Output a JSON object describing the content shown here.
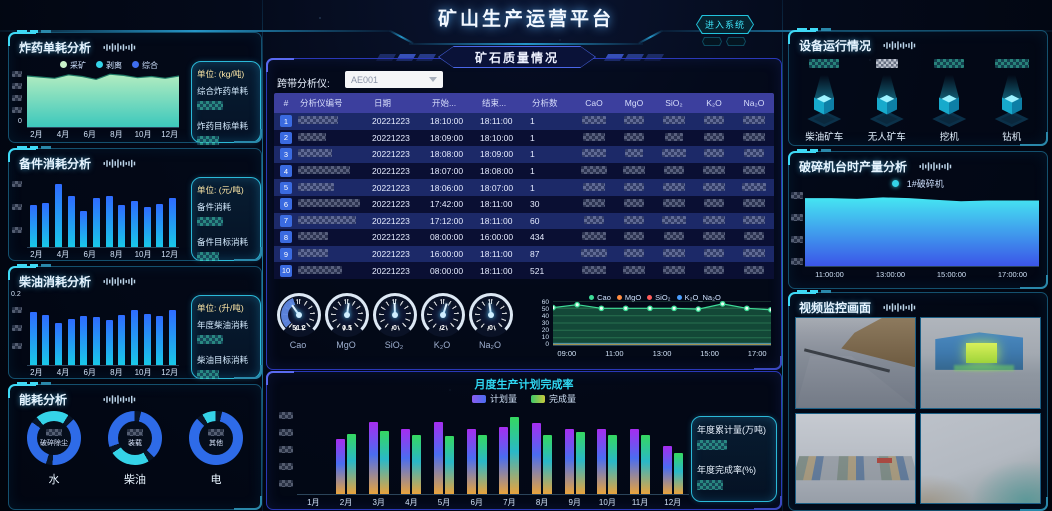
{
  "app": {
    "title": "矿山生产运营平台",
    "enter_button": "进入系统"
  },
  "panels": {
    "explosive": {
      "title": "炸药单耗分析",
      "legend": [
        {
          "label": "采矿",
          "color": "#c8f0c8"
        },
        {
          "label": "剥离",
          "color": "#35d3e8"
        },
        {
          "label": "综合",
          "color": "#3f6ef0"
        }
      ],
      "info": {
        "unit": "单位: (kg/吨)",
        "metric1": "综合炸药单耗",
        "metric2": "炸药目标单耗"
      }
    },
    "spare": {
      "title": "备件消耗分析",
      "info": {
        "unit": "单位: (元/吨)",
        "metric1": "备件消耗",
        "metric2": "备件目标消耗"
      }
    },
    "diesel": {
      "title": "柴油消耗分析",
      "info": {
        "unit": "单位: (升/吨)",
        "metric1": "年度柴油消耗",
        "metric2": "柴油目标消耗"
      }
    },
    "energy": {
      "title": "能耗分析"
    },
    "quality": {
      "section_title": "矿石质量情况",
      "analyzer_label": "跨带分析仪:",
      "analyzer_value": "AE001"
    },
    "monthly": {
      "box_line1": "年度累计量(万吨)",
      "box_line2": "年度完成率(%)"
    },
    "equipment": {
      "title": "设备运行情况",
      "items": [
        "柴油矿车",
        "无人矿车",
        "挖机",
        "钻机"
      ]
    },
    "crusher": {
      "title": "破碎机台时产量分析",
      "legend": "1#破碎机"
    },
    "video": {
      "title": "视频监控画面"
    }
  },
  "table": {
    "headers": [
      "#",
      "分析仪编号",
      "日期",
      "开始...",
      "结束...",
      "分析数",
      "CaO",
      "MgO",
      "SiO₂",
      "K₂O",
      "Na₂O"
    ],
    "rows": [
      {
        "i": "1",
        "date": "20221223",
        "start": "18:10:00",
        "end": "18:11:00",
        "n": "1"
      },
      {
        "i": "2",
        "date": "20221223",
        "start": "18:09:00",
        "end": "18:10:00",
        "n": "1"
      },
      {
        "i": "3",
        "date": "20221223",
        "start": "18:08:00",
        "end": "18:09:00",
        "n": "1"
      },
      {
        "i": "4",
        "date": "20221223",
        "start": "18:07:00",
        "end": "18:08:00",
        "n": "1"
      },
      {
        "i": "5",
        "date": "20221223",
        "start": "18:06:00",
        "end": "18:07:00",
        "n": "1"
      },
      {
        "i": "6",
        "date": "20221223",
        "start": "17:42:00",
        "end": "18:11:00",
        "n": "30"
      },
      {
        "i": "7",
        "date": "20221223",
        "start": "17:12:00",
        "end": "18:11:00",
        "n": "60"
      },
      {
        "i": "8",
        "date": "20221223",
        "start": "08:00:00",
        "end": "16:00:00",
        "n": "434"
      },
      {
        "i": "9",
        "date": "20221223",
        "start": "16:00:00",
        "end": "18:11:00",
        "n": "87"
      },
      {
        "i": "10",
        "date": "20221223",
        "start": "08:00:00",
        "end": "18:11:00",
        "n": "521"
      }
    ]
  },
  "gauges": [
    {
      "label": "Cao",
      "value": "51.2"
    },
    {
      "label": "MgO",
      "value": "0.5"
    },
    {
      "label": "SiO₂",
      "value": "0"
    },
    {
      "label": "K₂O",
      "value": "2"
    },
    {
      "label": "Na₂O",
      "value": "0"
    }
  ],
  "chart_data": [
    {
      "name": "explosive_unit_consumption",
      "type": "area",
      "title": "炸药单耗分析",
      "categories": [
        "2月",
        "4月",
        "6月",
        "8月",
        "10月",
        "12月"
      ],
      "origin_label": "0",
      "values": [
        88,
        86,
        84,
        90,
        87,
        82,
        91,
        89,
        85,
        87,
        84,
        88
      ],
      "ymax": 100,
      "fill": [
        "#b2ecc0",
        "#3cc8bc"
      ],
      "stroke": "#1f7a66"
    },
    {
      "name": "spare_parts_consumption",
      "type": "bars",
      "title": "备件消耗分析",
      "categories": [
        "2月",
        "4月",
        "6月",
        "8月",
        "10月",
        "12月"
      ],
      "values": [
        60,
        63,
        90,
        73,
        52,
        70,
        73,
        60,
        66,
        57,
        62,
        70
      ],
      "colors": [
        "#19c8e8",
        "#2f6bff"
      ]
    },
    {
      "name": "diesel_consumption",
      "type": "bars",
      "title": "柴油消耗分析",
      "categories": [
        "2月",
        "4月",
        "6月",
        "8月",
        "10月",
        "12月"
      ],
      "ytick_top": "0.2",
      "ylim": [
        0,
        0.2
      ],
      "values": [
        76,
        72,
        60,
        66,
        70,
        69,
        64,
        71,
        79,
        73,
        70,
        79
      ],
      "colors": [
        "#19c8e8",
        "#2f6bff"
      ]
    },
    {
      "name": "energy_analysis",
      "type": "donuts",
      "title": "能耗分析",
      "donuts": [
        {
          "label": "水",
          "segment_label": "破碎除尘",
          "from": -40,
          "segments": [
            [
              "#35d3e8",
              20
            ],
            [
              "#081528",
              4
            ],
            [
              "#2e6be8",
              38
            ],
            [
              "#081528",
              4
            ],
            [
              "#2e6be8",
              30
            ],
            [
              "#081528",
              4
            ]
          ]
        },
        {
          "label": "柴油",
          "segment_label": "装载",
          "from": 150,
          "segments": [
            [
              "#35d3e8",
              24
            ],
            [
              "#081528",
              4
            ],
            [
              "#2e6be8",
              30
            ],
            [
              "#081528",
              4
            ],
            [
              "#2e6be8",
              34
            ],
            [
              "#081528",
              4
            ]
          ]
        },
        {
          "label": "电",
          "segment_label": "其他",
          "from": -30,
          "segments": [
            [
              "#35d3e8",
              8
            ],
            [
              "#081528",
              4
            ],
            [
              "#2e6be8",
              84
            ],
            [
              "#081528",
              4
            ]
          ]
        }
      ]
    },
    {
      "name": "ore_quality_trend",
      "type": "line",
      "x": [
        "09:00",
        "11:00",
        "13:00",
        "15:00",
        "17:00"
      ],
      "ylim": [
        0,
        60
      ],
      "yticks": [
        0,
        10,
        20,
        30,
        40,
        50,
        60
      ],
      "series": [
        {
          "name": "Cao",
          "color": "#3ddc97",
          "fill": "rgba(40,150,95,.45)",
          "dots": true,
          "values": [
            51,
            55,
            50,
            50,
            50,
            50,
            49,
            56,
            50,
            48
          ]
        },
        {
          "name": "MgO",
          "color": "#ff8c42",
          "values": [
            0.5,
            0.5,
            0.5,
            0.5,
            0.5,
            0.5,
            0.5,
            0.5,
            0.5,
            0.5
          ]
        },
        {
          "name": "SiO₂",
          "color": "#ff5b5b",
          "values": [
            1,
            1,
            1,
            1,
            1,
            1,
            1,
            1,
            1,
            1
          ]
        },
        {
          "name": "K₂O_Na₂O",
          "color": "#4a9eff",
          "values": [
            2,
            2,
            2,
            2,
            2,
            2,
            2,
            2,
            2,
            2
          ]
        }
      ]
    },
    {
      "name": "monthly_plan_completion",
      "type": "pairbars",
      "title": "月度生产计划完成率",
      "categories": [
        "1月",
        "2月",
        "3月",
        "4月",
        "5月",
        "6月",
        "7月",
        "8月",
        "9月",
        "10月",
        "11月",
        "12月"
      ],
      "series": [
        {
          "name": "计划量",
          "colors": [
            "#e8a33d",
            "#4a6df0",
            "#a62df0"
          ],
          "values": [
            0,
            62,
            82,
            74,
            82,
            74,
            76,
            81,
            74,
            74,
            74,
            54
          ]
        },
        {
          "name": "完成量",
          "colors": [
            "#e8a33d",
            "#2ab8c8",
            "#35d860"
          ],
          "values": [
            0,
            68,
            72,
            67,
            66,
            67,
            88,
            67,
            70,
            67,
            67,
            47
          ]
        }
      ]
    },
    {
      "name": "crusher_hourly_output",
      "type": "area",
      "title": "破碎机台时产量分析",
      "x": [
        "11:00:00",
        "13:00:00",
        "15:00:00",
        "17:00:00"
      ],
      "values": [
        87,
        87,
        86,
        88,
        87,
        85,
        83,
        84,
        84,
        84
      ],
      "ymax": 100,
      "fill": [
        "#45e6f2",
        "#3b55e8"
      ]
    }
  ]
}
